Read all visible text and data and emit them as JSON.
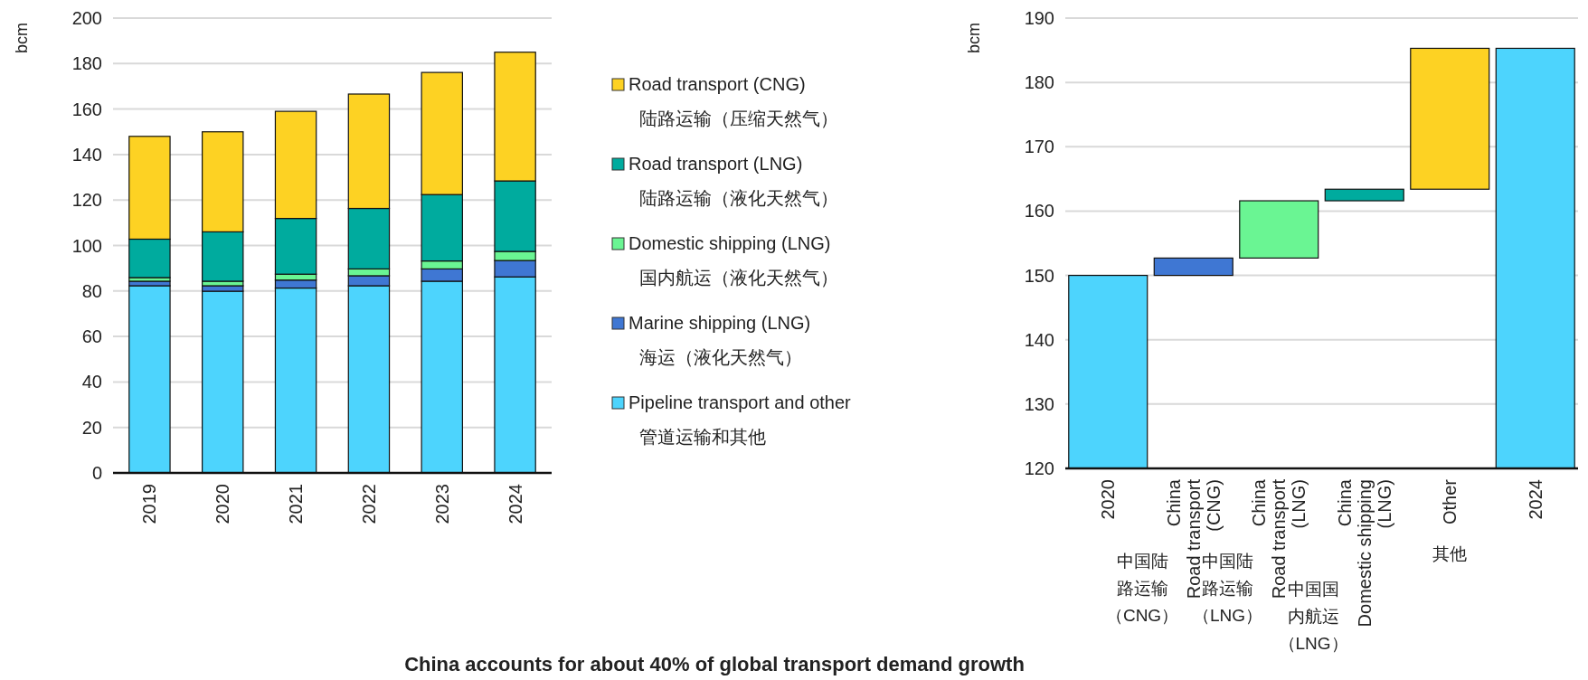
{
  "chart_data": [
    {
      "type": "bar",
      "stacked": true,
      "title": "China accounts for about 40% of global transport demand growth",
      "ylabel": "bcm",
      "categories": [
        "2019",
        "2020",
        "2021",
        "2022",
        "2023",
        "2024"
      ],
      "ylim": [
        0,
        200
      ],
      "yticks": [
        0,
        20,
        40,
        60,
        80,
        100,
        120,
        140,
        160,
        180,
        200
      ],
      "grid": "y",
      "legend": "right",
      "series": [
        {
          "name": "Pipeline transport and other\n管道运输和其他",
          "color": "#4dd4fd",
          "values": [
            82.3,
            79.9,
            81.3,
            82.3,
            84.3,
            86.2
          ]
        },
        {
          "name": "Marine shipping (LNG)\n海运（液化天然气）",
          "color": "#3f77d3",
          "values": [
            2.0,
            2.4,
            3.5,
            4.4,
            5.4,
            7.2
          ]
        },
        {
          "name": "Domestic shipping (LNG)\n国内航运（液化天然气）",
          "color": "#6af593",
          "values": [
            1.6,
            2.0,
            2.6,
            3.0,
            3.5,
            4.0
          ]
        },
        {
          "name": "Road transport (LNG)\n陆路运输（液化天然气）",
          "color": "#00ab9e",
          "values": [
            16.9,
            21.7,
            24.5,
            26.6,
            29.2,
            31.0
          ]
        },
        {
          "name": "Road transport (CNG)\n陆路运输（压缩天然气）",
          "color": "#fdd223",
          "values": [
            45.2,
            44.0,
            47.1,
            50.3,
            53.7,
            56.6
          ]
        }
      ]
    },
    {
      "type": "bar",
      "ylabel": "bcm",
      "categories": [
        "2020",
        "China\nRoad transport\n(CNG)",
        "China\nRoad transport\n(LNG)",
        "China\nDomestic shipping\n(LNG)",
        "Other",
        "2024"
      ],
      "values": [
        150.0,
        2.7,
        8.9,
        1.8,
        21.9,
        185.3
      ],
      "base": [
        0,
        150.0,
        152.7,
        161.6,
        163.4,
        0
      ],
      "colors": [
        "#4dd4fd",
        "#3f77d3",
        "#6af593",
        "#00ab9e",
        "#fdd223",
        "#4dd4fd"
      ],
      "ylim": [
        120,
        190
      ],
      "yticks": [
        120,
        130,
        140,
        150,
        160,
        170,
        180,
        190
      ],
      "grid": "y",
      "annotations": [
        "中国陆路运输（CNG）",
        "中国陆路运输（LNG）",
        "中国国内航运（LNG）",
        "其他"
      ]
    }
  ]
}
